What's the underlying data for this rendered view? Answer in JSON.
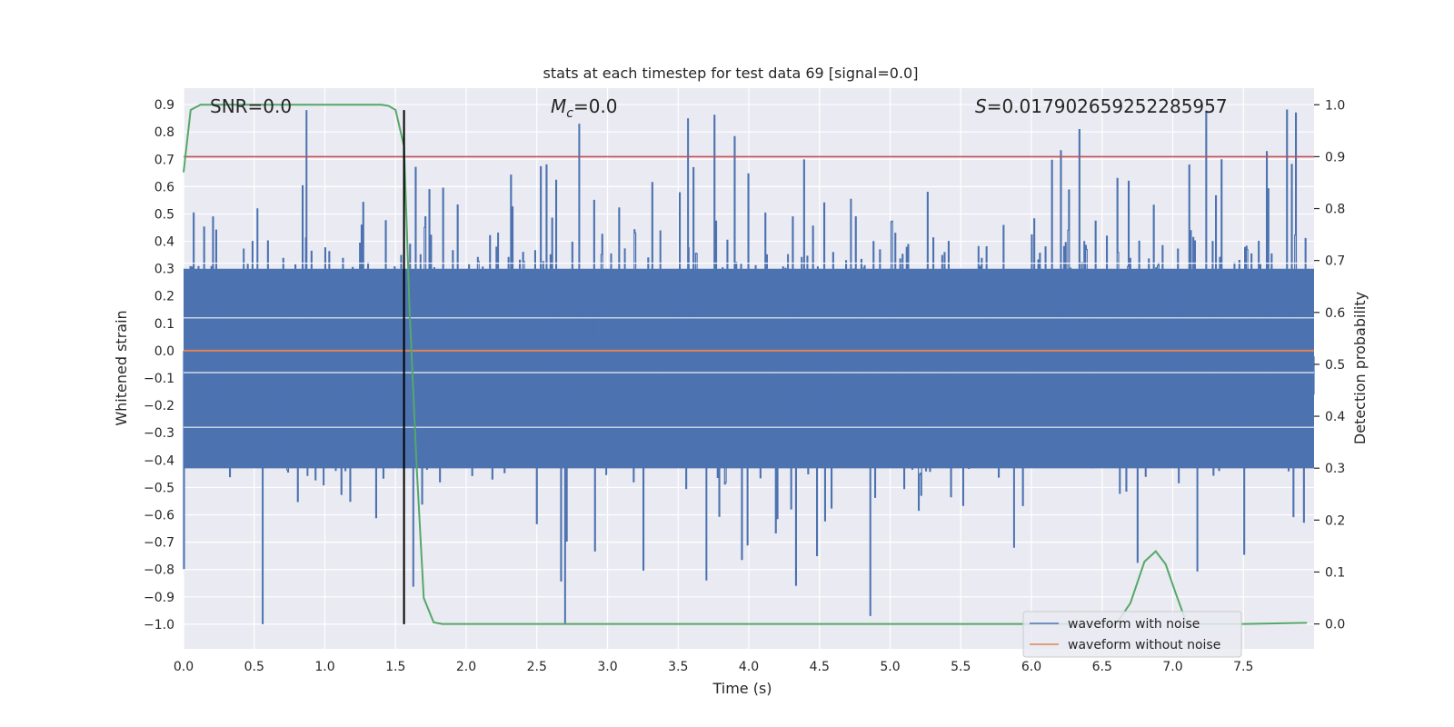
{
  "chart_data": {
    "type": "line",
    "title": "stats at each timestep for test data 69 [signal=0.0]",
    "xlabel": "Time (s)",
    "ylabel_left": "Whitened strain",
    "ylabel_right": "Detection probability",
    "xlim": [
      0.0,
      8.0
    ],
    "ylim_left": [
      -1.09,
      0.96
    ],
    "ylim_right": [
      -0.048,
      1.032
    ],
    "x_ticks": [
      "0.0",
      "0.5",
      "1.0",
      "1.5",
      "2.0",
      "2.5",
      "3.0",
      "3.5",
      "4.0",
      "4.5",
      "5.0",
      "5.5",
      "6.0",
      "6.5",
      "7.0",
      "7.5"
    ],
    "y_left_ticks": [
      "0.9",
      "0.8",
      "0.7",
      "0.6",
      "0.5",
      "0.4",
      "0.3",
      "0.2",
      "0.1",
      "0.0",
      "-0.1",
      "-0.2",
      "-0.3",
      "-0.4",
      "-0.5",
      "-0.6",
      "-0.7",
      "-0.8",
      "-0.9",
      "-1.0"
    ],
    "y_right_ticks": [
      "1.0",
      "0.9",
      "0.8",
      "0.7",
      "0.6",
      "0.5",
      "0.4",
      "0.3",
      "0.2",
      "0.1",
      "0.0"
    ],
    "grid": true,
    "annotations": {
      "snr": "SNR=0.0",
      "mc_symbol": "M",
      "mc_subscript": "c",
      "mc_value": "=0.0",
      "s_symbol": "S",
      "s_value": "=0.017902659252285957"
    },
    "threshold_line": {
      "axis": "right",
      "value": 0.9,
      "color": "#c44e52"
    },
    "marker_line": {
      "x": 1.56,
      "y_range": [
        -1.0,
        0.88
      ],
      "color": "#000000"
    },
    "series": [
      {
        "name": "waveform with noise",
        "axis": "left",
        "color": "#4c72b0",
        "description_stats": {
          "mean": 0.0,
          "typical_range": [
            -0.45,
            0.45
          ],
          "min": -1.0,
          "max": 0.88
        }
      },
      {
        "name": "waveform without noise",
        "axis": "left",
        "color": "#dd8452",
        "x": [
          0.0,
          8.0
        ],
        "y": [
          0.0,
          0.0
        ]
      },
      {
        "name": "detection probability",
        "axis": "right",
        "color": "#55a868",
        "x": [
          0.0,
          0.05,
          0.12,
          0.2,
          0.5,
          1.0,
          1.4,
          1.45,
          1.5,
          1.56,
          1.6,
          1.65,
          1.7,
          1.77,
          1.83,
          2.0,
          6.0,
          6.6,
          6.7,
          6.8,
          6.88,
          6.95,
          7.02,
          7.1,
          7.2,
          7.5,
          7.95
        ],
        "y": [
          0.87,
          0.99,
          1.0,
          1.0,
          1.0,
          1.0,
          1.0,
          0.998,
          0.99,
          0.92,
          0.6,
          0.3,
          0.05,
          0.003,
          0.0,
          0.0,
          0.0,
          0.0,
          0.04,
          0.12,
          0.14,
          0.115,
          0.06,
          0.0,
          0.0,
          0.0,
          0.002
        ]
      }
    ],
    "legend": {
      "placement": "lower-right",
      "entries": [
        "waveform with noise",
        "waveform without noise"
      ]
    }
  }
}
